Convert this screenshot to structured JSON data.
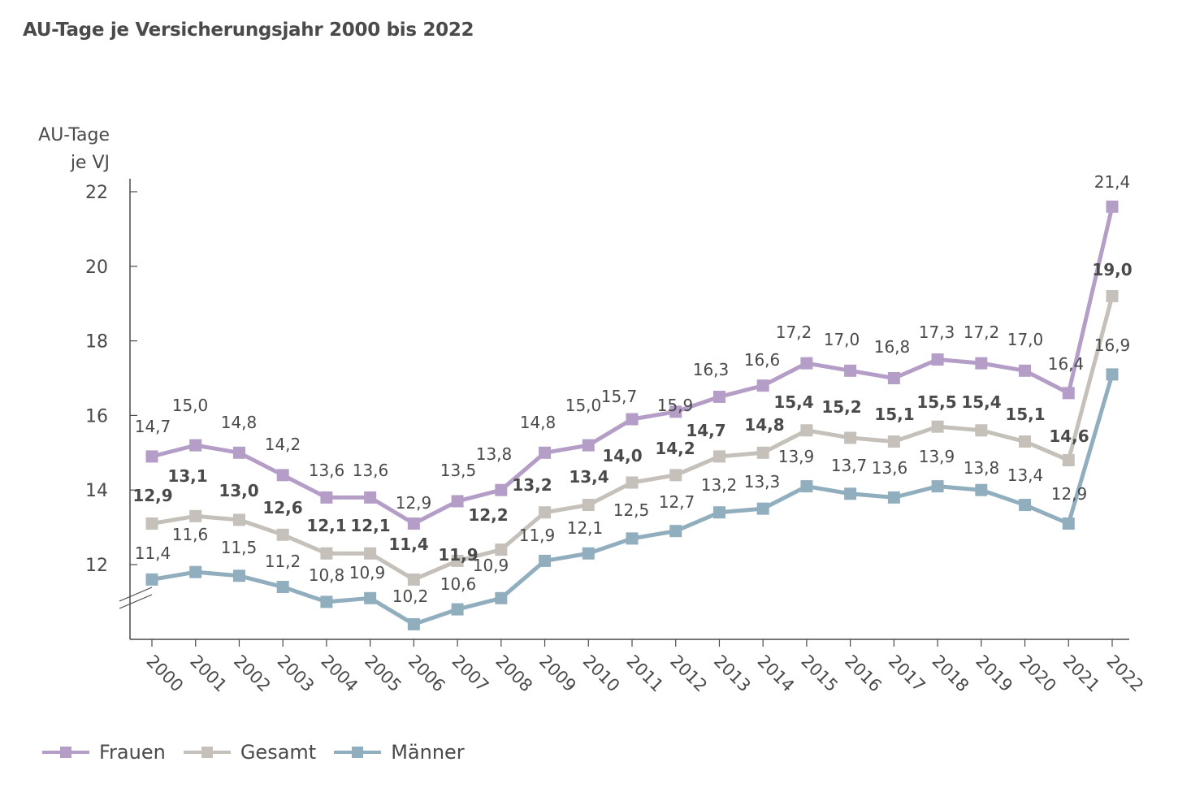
{
  "title": "AU-Tage je Versicherungsjahr 2000 bis 2022",
  "colors": {
    "Frauen": "#b49ec8",
    "Gesamt": "#c5c0b9",
    "Männer": "#91aebe",
    "axis": "#4a4a4a",
    "text": "#4a4a4a"
  },
  "chart_data": {
    "type": "line",
    "title": "AU-Tage je Versicherungsjahr 2000 bis 2022",
    "xlabel": "",
    "ylabel": "AU-Tage je VJ",
    "ylabel_lines": [
      "AU-Tage",
      "je VJ"
    ],
    "y_ticks": [
      12,
      14,
      16,
      18,
      20,
      22
    ],
    "ylim": [
      10,
      22
    ],
    "axis_break": true,
    "grid": false,
    "legend_position": "bottom-left",
    "x": [
      "2000",
      "2001",
      "2002",
      "2003",
      "2004",
      "2005",
      "2006",
      "2007",
      "2008",
      "2009",
      "2010",
      "2011",
      "2012",
      "2013",
      "2014",
      "2015",
      "2016",
      "2017",
      "2018",
      "2019",
      "2020",
      "2021",
      "2022"
    ],
    "series": [
      {
        "name": "Frauen",
        "values": [
          14.7,
          15.0,
          14.8,
          14.2,
          13.6,
          13.6,
          12.9,
          13.5,
          13.8,
          14.8,
          15.0,
          15.7,
          15.9,
          16.3,
          16.6,
          17.2,
          17.0,
          16.8,
          17.3,
          17.2,
          17.0,
          16.4,
          21.4
        ],
        "labels": [
          "14,7",
          "15,0",
          "14,8",
          "14,2",
          "13,6",
          "13,6",
          "12,9",
          "13,5",
          "13,8",
          "14,8",
          "15,0",
          "15,7",
          "15,9",
          "16,3",
          "16,6",
          "17,2",
          "17,0",
          "16,8",
          "17,3",
          "17,2",
          "17,0",
          "16,4",
          "21,4"
        ],
        "label_bold": false
      },
      {
        "name": "Gesamt",
        "values": [
          12.9,
          13.1,
          13.0,
          12.6,
          12.1,
          12.1,
          11.4,
          11.9,
          12.2,
          13.2,
          13.4,
          14.0,
          14.2,
          14.7,
          14.8,
          15.4,
          15.2,
          15.1,
          15.5,
          15.4,
          15.1,
          14.6,
          19.0
        ],
        "labels": [
          "12,9",
          "13,1",
          "13,0",
          "12,6",
          "12,1",
          "12,1",
          "11,4",
          "11,9",
          "12,2",
          "13,2",
          "13,4",
          "14,0",
          "14,2",
          "14,7",
          "14,8",
          "15,4",
          "15,2",
          "15,1",
          "15,5",
          "15,4",
          "15,1",
          "14,6",
          "19,0"
        ],
        "label_bold": true
      },
      {
        "name": "Männer",
        "values": [
          11.4,
          11.6,
          11.5,
          11.2,
          10.8,
          10.9,
          10.2,
          10.6,
          10.9,
          11.9,
          12.1,
          12.5,
          12.7,
          13.2,
          13.3,
          13.9,
          13.7,
          13.6,
          13.9,
          13.8,
          13.4,
          12.9,
          16.9
        ],
        "labels": [
          "11,4",
          "11,6",
          "11,5",
          "11,2",
          "10,8",
          "10,9",
          "10,2",
          "10,6",
          "10,9",
          "11,9",
          "12,1",
          "12,5",
          "12,7",
          "13,2",
          "13,3",
          "13,9",
          "13,7",
          "13,6",
          "13,9",
          "13,8",
          "13,4",
          "12,9",
          "16,9"
        ],
        "label_bold": false
      }
    ]
  },
  "legend": [
    {
      "label": "Frauen",
      "series": "Frauen"
    },
    {
      "label": "Gesamt",
      "series": "Gesamt"
    },
    {
      "label": "Männer",
      "series": "Männer"
    }
  ]
}
